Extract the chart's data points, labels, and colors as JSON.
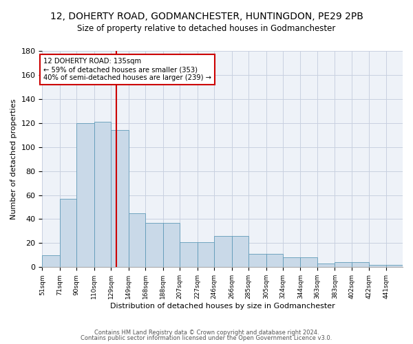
{
  "title": "12, DOHERTY ROAD, GODMANCHESTER, HUNTINGDON, PE29 2PB",
  "subtitle": "Size of property relative to detached houses in Godmanchester",
  "xlabel": "Distribution of detached houses by size in Godmanchester",
  "ylabel": "Number of detached properties",
  "bin_labels": [
    "51sqm",
    "71sqm",
    "90sqm",
    "110sqm",
    "129sqm",
    "149sqm",
    "168sqm",
    "188sqm",
    "207sqm",
    "227sqm",
    "246sqm",
    "266sqm",
    "285sqm",
    "305sqm",
    "324sqm",
    "344sqm",
    "363sqm",
    "383sqm",
    "402sqm",
    "422sqm",
    "441sqm"
  ],
  "bins": [
    51,
    71,
    90,
    110,
    129,
    149,
    168,
    188,
    207,
    227,
    246,
    266,
    285,
    305,
    324,
    344,
    363,
    383,
    402,
    422,
    441,
    460
  ],
  "bar_values": [
    10,
    57,
    120,
    121,
    114,
    45,
    37,
    37,
    21,
    21,
    26,
    26,
    11,
    11,
    8,
    8,
    3,
    4,
    4,
    2,
    2
  ],
  "bar_color": "#c9d9e8",
  "bar_edge_color": "#5f9ab8",
  "grid_color": "#c8d0e0",
  "background_color": "#eef2f8",
  "red_line_x": 135,
  "annotation_line1": "12 DOHERTY ROAD: 135sqm",
  "annotation_line2": "← 59% of detached houses are smaller (353)",
  "annotation_line3": "40% of semi-detached houses are larger (239) →",
  "annotation_box_color": "#ffffff",
  "annotation_box_edge_color": "#cc0000",
  "footer_line1": "Contains HM Land Registry data © Crown copyright and database right 2024.",
  "footer_line2": "Contains public sector information licensed under the Open Government Licence v3.0.",
  "ylim": [
    0,
    180
  ],
  "yticks": [
    0,
    20,
    40,
    60,
    80,
    100,
    120,
    140,
    160,
    180
  ],
  "title_fontsize": 10,
  "subtitle_fontsize": 8.5,
  "ylabel_fontsize": 8,
  "xlabel_fontsize": 8
}
